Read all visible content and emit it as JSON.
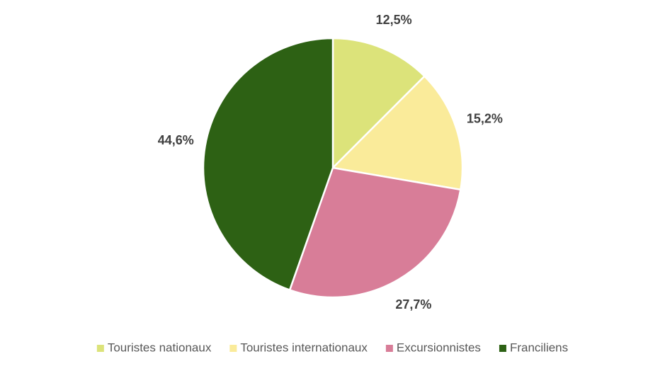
{
  "chart_data": {
    "type": "pie",
    "categories": [
      "Touristes nationaux",
      "Touristes internationaux",
      "Excursionnistes",
      "Franciliens"
    ],
    "values": [
      12.5,
      15.2,
      27.7,
      44.6
    ],
    "value_labels": [
      "12,5%",
      "15,2%",
      "27,7%",
      "44,6%"
    ],
    "colors": [
      "#dce37a",
      "#faeb9a",
      "#d87d98",
      "#2d6114"
    ],
    "legend": "bottom"
  }
}
